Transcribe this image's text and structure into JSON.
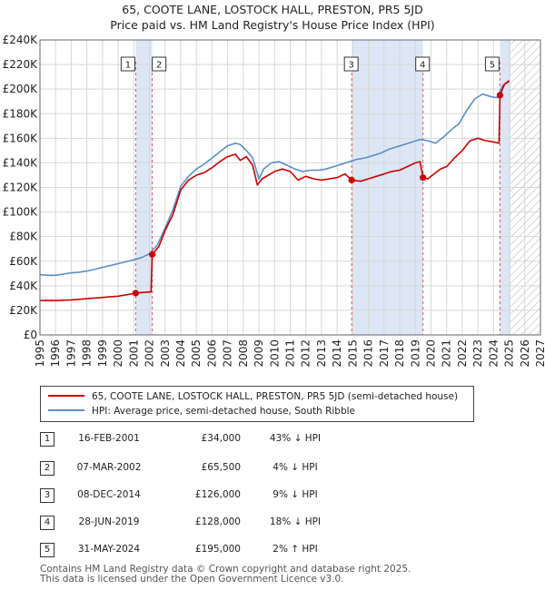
{
  "title": "65, COOTE LANE, LOSTOCK HALL, PRESTON, PR5 5JD",
  "subtitle": "Price paid vs. HM Land Registry's House Price Index (HPI)",
  "colors": {
    "price_line": "#cc0000",
    "hpi_line": "#5b8ec7",
    "shade": "#dde6f5",
    "hatch": "#aaaaaa",
    "grid": "#d8d8d8",
    "marker_line": "#dd5555"
  },
  "legend": {
    "property": "65, COOTE LANE, LOSTOCK HALL, PRESTON, PR5 5JD (semi-detached house)",
    "hpi": "HPI: Average price, semi-detached house, South Ribble"
  },
  "sales": [
    {
      "num": "1",
      "date": "16-FEB-2001",
      "price": "£34,000",
      "hpi": "43% ↓ HPI"
    },
    {
      "num": "2",
      "date": "07-MAR-2002",
      "price": "£65,500",
      "hpi": "4% ↓ HPI"
    },
    {
      "num": "3",
      "date": "08-DEC-2014",
      "price": "£126,000",
      "hpi": "9% ↓ HPI"
    },
    {
      "num": "4",
      "date": "28-JUN-2019",
      "price": "£128,000",
      "hpi": "18% ↓ HPI"
    },
    {
      "num": "5",
      "date": "31-MAY-2024",
      "price": "£195,000",
      "hpi": "2% ↑ HPI"
    }
  ],
  "footer": {
    "line1": "Contains HM Land Registry data © Crown copyright and database right 2025.",
    "line2": "This data is licensed under the Open Government Licence v3.0."
  },
  "chart_data": {
    "type": "line",
    "title": "65, COOTE LANE, LOSTOCK HALL, PRESTON, PR5 5JD",
    "subtitle": "Price paid vs. HM Land Registry's House Price Index (HPI)",
    "xlabel": "",
    "ylabel": "",
    "xlim": [
      1995,
      2027
    ],
    "ylim": [
      0,
      240000
    ],
    "yticks": [
      0,
      20000,
      40000,
      60000,
      80000,
      100000,
      120000,
      140000,
      160000,
      180000,
      200000,
      220000,
      240000
    ],
    "ytick_labels": [
      "£0",
      "£20K",
      "£40K",
      "£60K",
      "£80K",
      "£100K",
      "£120K",
      "£140K",
      "£160K",
      "£180K",
      "£200K",
      "£220K",
      "£240K"
    ],
    "xticks": [
      1995,
      1996,
      1997,
      1998,
      1999,
      2000,
      2001,
      2002,
      2003,
      2004,
      2005,
      2006,
      2007,
      2008,
      2009,
      2010,
      2011,
      2012,
      2013,
      2014,
      2015,
      2016,
      2017,
      2018,
      2019,
      2020,
      2021,
      2022,
      2023,
      2024,
      2025,
      2026,
      2027
    ],
    "xtick_labels": [
      "1995",
      "1996",
      "1997",
      "1998",
      "1999",
      "2000",
      "2001",
      "2002",
      "2003",
      "2004",
      "2005",
      "2006",
      "2007",
      "2008",
      "2009",
      "2010",
      "2011",
      "2012",
      "2013",
      "2014",
      "2015",
      "2016",
      "2017",
      "2018",
      "2019",
      "2020",
      "2021",
      "2022",
      "2023",
      "2024",
      "2025",
      "2026",
      "2027"
    ],
    "grid": true,
    "shaded_ranges": [
      [
        2001.12,
        2002.18
      ],
      [
        2014.93,
        2019.49
      ],
      [
        2024.41,
        2025.1
      ]
    ],
    "future_hatch_from": 2025.1,
    "markers": [
      {
        "label": "1",
        "x": 2001.12,
        "y": 34000
      },
      {
        "label": "2",
        "x": 2002.18,
        "y": 65500
      },
      {
        "label": "3",
        "x": 2014.93,
        "y": 126000
      },
      {
        "label": "4",
        "x": 2019.49,
        "y": 128000
      },
      {
        "label": "5",
        "x": 2024.41,
        "y": 195000
      }
    ],
    "series": [
      {
        "name": "65, COOTE LANE, LOSTOCK HALL, PRESTON, PR5 5JD (semi-detached house)",
        "color": "#cc0000",
        "x": [
          1995.0,
          1996.0,
          1997.0,
          1998.0,
          1999.0,
          2000.0,
          2001.12,
          2001.5,
          2002.1,
          2002.18,
          2002.6,
          2003.0,
          2003.5,
          2004.0,
          2004.5,
          2005.0,
          2005.5,
          2006.0,
          2006.5,
          2007.0,
          2007.5,
          2007.8,
          2008.2,
          2008.6,
          2008.9,
          2009.2,
          2009.6,
          2010.0,
          2010.5,
          2011.0,
          2011.5,
          2012.0,
          2012.5,
          2013.0,
          2013.5,
          2014.0,
          2014.5,
          2014.93,
          2015.5,
          2016.0,
          2016.5,
          2017.0,
          2017.5,
          2018.0,
          2018.5,
          2019.0,
          2019.3,
          2019.49,
          2019.8,
          2020.2,
          2020.6,
          2021.0,
          2021.5,
          2022.0,
          2022.5,
          2023.0,
          2023.5,
          2024.0,
          2024.35,
          2024.41,
          2024.7,
          2025.0
        ],
        "y": [
          28000,
          28000,
          28500,
          29500,
          30500,
          31500,
          34000,
          34500,
          35000,
          65500,
          72000,
          85000,
          98000,
          118000,
          126000,
          130000,
          132000,
          136000,
          141000,
          145000,
          147000,
          142000,
          145000,
          138000,
          122000,
          127000,
          130000,
          133000,
          135000,
          133000,
          126000,
          129000,
          127000,
          126000,
          127000,
          128000,
          131000,
          126000,
          125000,
          127000,
          129000,
          131000,
          133000,
          134000,
          137000,
          140000,
          141000,
          128000,
          127000,
          131000,
          135000,
          137000,
          144000,
          150000,
          158000,
          160000,
          158000,
          157000,
          156000,
          195000,
          204000,
          207000
        ]
      },
      {
        "name": "HPI: Average price, semi-detached house, South Ribble",
        "color": "#5b8ec7",
        "x": [
          1995.0,
          1995.5,
          1996.0,
          1996.5,
          1997.0,
          1997.5,
          1998.0,
          1998.5,
          1999.0,
          1999.5,
          2000.0,
          2000.5,
          2001.0,
          2001.5,
          2002.0,
          2002.5,
          2003.0,
          2003.5,
          2004.0,
          2004.5,
          2005.0,
          2005.5,
          2006.0,
          2006.5,
          2007.0,
          2007.5,
          2007.8,
          2008.2,
          2008.6,
          2009.0,
          2009.3,
          2009.8,
          2010.3,
          2010.8,
          2011.3,
          2011.8,
          2012.3,
          2012.8,
          2013.3,
          2013.8,
          2014.3,
          2014.8,
          2015.3,
          2015.8,
          2016.3,
          2016.8,
          2017.3,
          2017.8,
          2018.3,
          2018.8,
          2019.3,
          2019.8,
          2020.3,
          2020.8,
          2021.3,
          2021.8,
          2022.3,
          2022.8,
          2023.3,
          2023.8,
          2024.2,
          2024.6,
          2025.0
        ],
        "y": [
          49000,
          48500,
          48500,
          49500,
          50500,
          51000,
          52000,
          53500,
          55000,
          56500,
          58000,
          59500,
          61000,
          63000,
          66000,
          73000,
          87000,
          102000,
          121000,
          129000,
          135000,
          139000,
          144000,
          149000,
          154000,
          156000,
          155000,
          150000,
          144000,
          127000,
          135000,
          140000,
          141000,
          138000,
          135000,
          133000,
          134000,
          134000,
          135000,
          137000,
          139000,
          141000,
          143000,
          144000,
          146000,
          148000,
          151000,
          153000,
          155000,
          157000,
          159000,
          158000,
          156000,
          161000,
          167000,
          172000,
          183000,
          192000,
          196000,
          194000,
          193000,
          203000,
          206000
        ]
      }
    ]
  }
}
